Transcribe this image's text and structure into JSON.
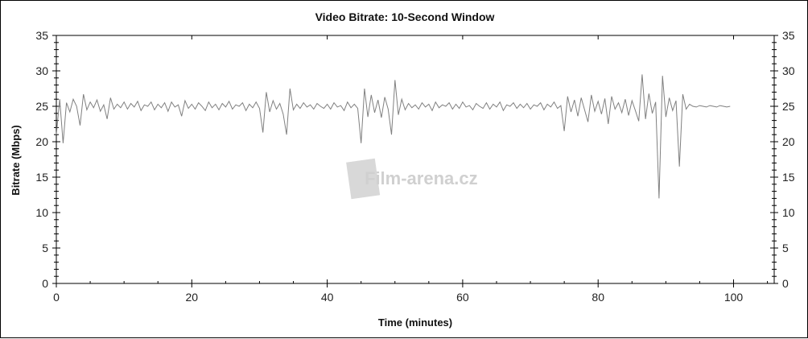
{
  "chart_data": {
    "type": "line",
    "title": "Video Bitrate: 10-Second Window",
    "xlabel": "Time (minutes)",
    "ylabel": "Bitrate (Mbps)",
    "xlim": [
      0,
      106
    ],
    "ylim": [
      0,
      35
    ],
    "x_ticks": [
      0,
      20,
      40,
      60,
      80,
      100
    ],
    "y_ticks": [
      0,
      5,
      10,
      15,
      20,
      25,
      30,
      35
    ],
    "grid": false,
    "line_color": "#808080",
    "watermark": "Film-arena.cz",
    "x_step": 0.5,
    "y": [
      21,
      26,
      19.8,
      25.5,
      24.2,
      26,
      25,
      22.3,
      26.7,
      24.5,
      25.6,
      24.8,
      25.9,
      24.3,
      25.2,
      23.2,
      26.2,
      24.6,
      25.3,
      24.8,
      25.6,
      24.6,
      25.4,
      24.9,
      25.7,
      24.4,
      25.2,
      25,
      25.6,
      24.5,
      25.3,
      24.8,
      25.5,
      24.3,
      25.6,
      24.9,
      25.2,
      23.6,
      25.8,
      24.7,
      25.3,
      24.6,
      25.5,
      25,
      24.4,
      25.6,
      24.8,
      25.3,
      24.5,
      25.4,
      24.9,
      25.7,
      24.6,
      25.2,
      25,
      25.5,
      24.4,
      25.3,
      24.8,
      25.6,
      24.7,
      21.3,
      27,
      24.2,
      25.8,
      24.6,
      25.4,
      23.9,
      21,
      27.5,
      24.5,
      25.3,
      24.7,
      25.5,
      24.9,
      25.2,
      24.6,
      25.4,
      25,
      24.7,
      25.3,
      24.6,
      25.5,
      24.9,
      25.1,
      24.4,
      25.6,
      24.8,
      25.3,
      24.7,
      19.8,
      27.5,
      23.5,
      26.6,
      24.1,
      25.9,
      23.4,
      26.3,
      24.6,
      21,
      28.7,
      23.8,
      26,
      24.5,
      25.4,
      24.8,
      25.2,
      24.6,
      25.5,
      24.9,
      25.3,
      24.4,
      25.6,
      24.8,
      25.2,
      25,
      25.5,
      24.6,
      25.3,
      24.7,
      25.6,
      24.9,
      25.1,
      24.5,
      25.4,
      25,
      24.7,
      25.5,
      24.6,
      25.3,
      24.9,
      25.6,
      24.4,
      25.2,
      25,
      25.5,
      24.7,
      25.3,
      24.8,
      25.4,
      24.6,
      25.2,
      25,
      25.5,
      24.5,
      25.3,
      24.9,
      25.6,
      24.7,
      25.1,
      21.5,
      26.4,
      24.2,
      25.9,
      23.6,
      26.2,
      24.5,
      22.8,
      26.6,
      24.3,
      25.7,
      23.9,
      26.1,
      22.5,
      26.4,
      24.6,
      25.5,
      24.1,
      26,
      23.7,
      25.8,
      24.4,
      22.9,
      29.5,
      23.2,
      26.8,
      24,
      25.6,
      12,
      29.3,
      23.5,
      26.2,
      24.4,
      25.8,
      16.5,
      26.7,
      24.6,
      25.3,
      25,
      24.9,
      25.1,
      25,
      24.9,
      25.1,
      25,
      24.9,
      25.1,
      25,
      24.9,
      25
    ]
  }
}
